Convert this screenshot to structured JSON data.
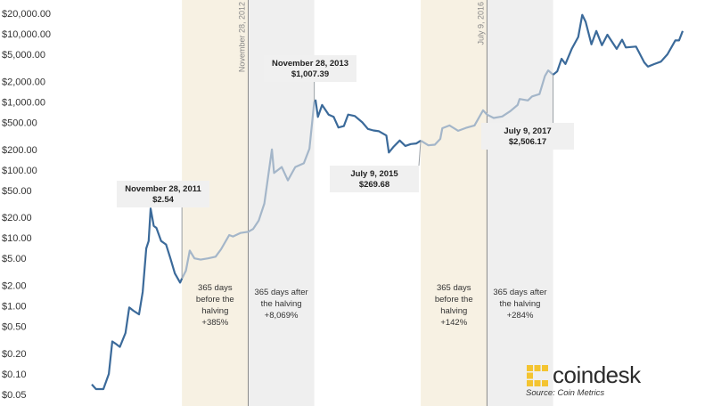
{
  "chart_data": {
    "type": "line",
    "title": "",
    "xlabel": "",
    "ylabel": "",
    "y_scale": "log",
    "ylim": [
      0.05,
      20000
    ],
    "grid": false,
    "y_ticks": [
      {
        "value": 20000,
        "label": "$20,000.00"
      },
      {
        "value": 10000,
        "label": "$10,000.00"
      },
      {
        "value": 5000,
        "label": "$5,000.00"
      },
      {
        "value": 2000,
        "label": "$2,000.00"
      },
      {
        "value": 1000,
        "label": "$1,000.00"
      },
      {
        "value": 500,
        "label": "$500.00"
      },
      {
        "value": 200,
        "label": "$200.00"
      },
      {
        "value": 100,
        "label": "$100.00"
      },
      {
        "value": 50,
        "label": "$50.00"
      },
      {
        "value": 20,
        "label": "$20.00"
      },
      {
        "value": 10,
        "label": "$10.00"
      },
      {
        "value": 5,
        "label": "$5.00"
      },
      {
        "value": 2,
        "label": "$2.00"
      },
      {
        "value": 1,
        "label": "$1.00"
      },
      {
        "value": 0.5,
        "label": "$0.50"
      },
      {
        "value": 0.2,
        "label": "$0.20"
      },
      {
        "value": 0.1,
        "label": "$0.10"
      },
      {
        "value": 0.05,
        "label": "$0.05"
      }
    ],
    "x_range": [
      "2010-07-18",
      "2019-06-25"
    ],
    "series": [
      {
        "colors": {
          "dark": "#3b6a9a",
          "light": "#a4b6c9"
        },
        "points": [
          [
            "2010-07-18",
            0.07
          ],
          [
            "2010-08-10",
            0.06
          ],
          [
            "2010-09-20",
            0.06
          ],
          [
            "2010-10-20",
            0.1
          ],
          [
            "2010-11-08",
            0.3
          ],
          [
            "2010-11-25",
            0.28
          ],
          [
            "2010-12-20",
            0.25
          ],
          [
            "2011-01-20",
            0.4
          ],
          [
            "2011-02-10",
            0.95
          ],
          [
            "2011-03-05",
            0.85
          ],
          [
            "2011-04-05",
            0.75
          ],
          [
            "2011-04-25",
            1.6
          ],
          [
            "2011-05-15",
            7.0
          ],
          [
            "2011-05-28",
            9.0
          ],
          [
            "2011-06-08",
            27.0
          ],
          [
            "2011-06-25",
            15.0
          ],
          [
            "2011-07-10",
            14.0
          ],
          [
            "2011-08-05",
            9.0
          ],
          [
            "2011-09-01",
            8.0
          ],
          [
            "2011-09-25",
            5.0
          ],
          [
            "2011-10-20",
            3.0
          ],
          [
            "2011-11-18",
            2.2
          ],
          [
            "2011-11-28",
            2.54
          ]
        ]
      },
      {
        "segment": "light",
        "points": [
          [
            "2011-11-28",
            2.54
          ],
          [
            "2011-12-20",
            3.3
          ],
          [
            "2012-01-10",
            6.5
          ],
          [
            "2012-02-05",
            5.0
          ],
          [
            "2012-03-10",
            4.8
          ],
          [
            "2012-04-20",
            5.0
          ],
          [
            "2012-06-01",
            5.3
          ],
          [
            "2012-07-01",
            6.8
          ],
          [
            "2012-08-15",
            11.0
          ],
          [
            "2012-09-05",
            10.5
          ],
          [
            "2012-10-15",
            11.8
          ],
          [
            "2012-11-28",
            12.3
          ],
          [
            "2012-12-25",
            13.5
          ],
          [
            "2013-01-25",
            18.0
          ],
          [
            "2013-02-25",
            32.0
          ],
          [
            "2013-04-08",
            200.0
          ],
          [
            "2013-04-20",
            90.0
          ],
          [
            "2013-06-01",
            110.0
          ],
          [
            "2013-07-05",
            70.0
          ],
          [
            "2013-08-15",
            110.0
          ],
          [
            "2013-10-01",
            125.0
          ],
          [
            "2013-11-01",
            205.0
          ],
          [
            "2013-11-28",
            1007.39
          ]
        ]
      },
      {
        "segment": "dark",
        "points": [
          [
            "2013-11-28",
            1007.39
          ],
          [
            "2013-12-05",
            1050.0
          ],
          [
            "2013-12-18",
            600.0
          ],
          [
            "2014-01-10",
            900.0
          ],
          [
            "2014-02-15",
            650.0
          ],
          [
            "2014-03-15",
            600.0
          ],
          [
            "2014-04-10",
            420.0
          ],
          [
            "2014-05-10",
            440.0
          ],
          [
            "2014-06-03",
            650.0
          ],
          [
            "2014-07-10",
            620.0
          ],
          [
            "2014-08-20",
            500.0
          ],
          [
            "2014-09-20",
            400.0
          ],
          [
            "2014-10-20",
            380.0
          ],
          [
            "2014-11-20",
            370.0
          ],
          [
            "2014-12-31",
            320.0
          ],
          [
            "2015-01-14",
            180.0
          ],
          [
            "2015-02-10",
            220.0
          ],
          [
            "2015-03-15",
            270.0
          ],
          [
            "2015-04-15",
            225.0
          ],
          [
            "2015-05-15",
            240.0
          ],
          [
            "2015-06-15",
            245.0
          ],
          [
            "2015-07-09",
            269.68
          ]
        ]
      },
      {
        "segment": "light",
        "points": [
          [
            "2015-07-09",
            269.68
          ],
          [
            "2015-08-20",
            230.0
          ],
          [
            "2015-09-25",
            235.0
          ],
          [
            "2015-10-25",
            285.0
          ],
          [
            "2015-11-05",
            410.0
          ],
          [
            "2015-12-15",
            450.0
          ],
          [
            "2016-02-01",
            375.0
          ],
          [
            "2016-03-15",
            415.0
          ],
          [
            "2016-05-01",
            450.0
          ],
          [
            "2016-06-17",
            750.0
          ],
          [
            "2016-07-09",
            650.0
          ],
          [
            "2016-08-15",
            580.0
          ],
          [
            "2016-10-01",
            610.0
          ],
          [
            "2016-11-15",
            730.0
          ],
          [
            "2016-12-25",
            900.0
          ],
          [
            "2017-01-05",
            1100.0
          ],
          [
            "2017-02-20",
            1050.0
          ],
          [
            "2017-03-15",
            1200.0
          ],
          [
            "2017-04-25",
            1300.0
          ],
          [
            "2017-05-25",
            2400.0
          ],
          [
            "2017-06-12",
            2900.0
          ],
          [
            "2017-07-09",
            2506.17
          ]
        ]
      },
      {
        "segment": "dark",
        "points": [
          [
            "2017-07-09",
            2506.17
          ],
          [
            "2017-08-01",
            2800.0
          ],
          [
            "2017-08-25",
            4300.0
          ],
          [
            "2017-09-15",
            3600.0
          ],
          [
            "2017-10-20",
            6000.0
          ],
          [
            "2017-11-25",
            9000.0
          ],
          [
            "2017-12-17",
            19000.0
          ],
          [
            "2018-01-05",
            15000.0
          ],
          [
            "2018-02-06",
            7000.0
          ],
          [
            "2018-03-05",
            11000.0
          ],
          [
            "2018-04-05",
            6800.0
          ],
          [
            "2018-05-05",
            9700.0
          ],
          [
            "2018-06-25",
            6000.0
          ],
          [
            "2018-07-25",
            8200.0
          ],
          [
            "2018-08-15",
            6300.0
          ],
          [
            "2018-10-10",
            6500.0
          ],
          [
            "2018-11-25",
            3800.0
          ],
          [
            "2018-12-15",
            3300.0
          ],
          [
            "2019-01-20",
            3600.0
          ],
          [
            "2019-02-25",
            3900.0
          ],
          [
            "2019-04-02",
            5000.0
          ],
          [
            "2019-05-15",
            8000.0
          ],
          [
            "2019-06-05",
            8000.0
          ],
          [
            "2019-06-25",
            11000.0
          ]
        ]
      }
    ],
    "highlight_periods": [
      {
        "start": "2011-11-28",
        "end": "2012-11-28",
        "color": "#f7f1e3",
        "lines": [
          "365 days",
          "before the",
          "halving",
          "+385%"
        ]
      },
      {
        "start": "2012-11-28",
        "end": "2013-11-28",
        "color": "#efefef",
        "lines": [
          "365 days after",
          "the halving",
          "+8,069%"
        ]
      },
      {
        "start": "2015-07-09",
        "end": "2016-07-09",
        "color": "#f7f1e3",
        "lines": [
          "365 days",
          "before the",
          "halving",
          "+142%"
        ]
      },
      {
        "start": "2016-07-09",
        "end": "2017-07-09",
        "color": "#efefef",
        "lines": [
          "365 days after",
          "the halving",
          "+284%"
        ]
      }
    ],
    "halving_lines": [
      {
        "date": "2012-11-28",
        "label": "November 28, 2012"
      },
      {
        "date": "2016-07-09",
        "label": "July 9, 2016"
      }
    ],
    "annotations": [
      {
        "date": "2011-11-28",
        "value": 2.54,
        "date_label": "November 28, 2011",
        "value_label": "$2.54"
      },
      {
        "date": "2013-11-28",
        "value": 1007.39,
        "date_label": "November 28, 2013",
        "value_label": "$1,007.39"
      },
      {
        "date": "2015-07-09",
        "value": 269.68,
        "date_label": "July 9, 2015",
        "value_label": "$269.68"
      },
      {
        "date": "2017-07-09",
        "value": 2506.17,
        "date_label": "July 9, 2017",
        "value_label": "$2,506.17"
      }
    ]
  },
  "brand": {
    "name": "coindesk",
    "source": "Source: Coin Metrics",
    "colors": {
      "icon": "#f4c430",
      "text": "#2b2b2b"
    }
  }
}
